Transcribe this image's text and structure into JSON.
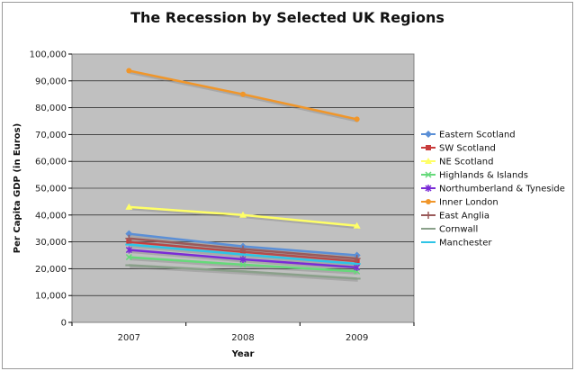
{
  "chart_data": {
    "type": "line",
    "title": "The Recession by Selected UK Regions",
    "xlabel": "Year",
    "ylabel": "Per Capita GDP (in Euros)",
    "x": [
      "2007",
      "2008",
      "2009"
    ],
    "ylim": [
      0,
      100000
    ],
    "yticks": [
      "0",
      "10,000",
      "20,000",
      "30,000",
      "40,000",
      "50,000",
      "60,000",
      "70,000",
      "80,000",
      "90,000",
      "100,000"
    ],
    "grid": true,
    "legend": "right",
    "series": [
      {
        "name": "Eastern Scotland",
        "color": "#5b8fd6",
        "marker": "diamond",
        "values": [
          33000,
          28300,
          25000
        ]
      },
      {
        "name": "SW Scotland",
        "color": "#c83c3c",
        "marker": "square",
        "values": [
          30000,
          26300,
          22800
        ]
      },
      {
        "name": "NE Scotland",
        "color": "#ffff66",
        "marker": "triangle",
        "values": [
          43000,
          40000,
          36000
        ]
      },
      {
        "name": "Highlands & Islands",
        "color": "#66d97a",
        "marker": "x",
        "values": [
          24300,
          21500,
          19000
        ]
      },
      {
        "name": "Northumberland & Tyneside",
        "color": "#7a2bd6",
        "marker": "asterisk",
        "values": [
          27000,
          23500,
          20500
        ]
      },
      {
        "name": "Inner London",
        "color": "#f0962a",
        "marker": "circle",
        "values": [
          93800,
          85000,
          75700
        ]
      },
      {
        "name": "East Anglia",
        "color": "#9a5a5a",
        "marker": "plus",
        "values": [
          31300,
          27300,
          23800
        ]
      },
      {
        "name": "Cornwall",
        "color": "#8aa08a",
        "marker": "dash",
        "values": [
          21300,
          19000,
          16300
        ]
      },
      {
        "name": "Manchester",
        "color": "#2ec4e6",
        "marker": "dash",
        "values": [
          29000,
          25300,
          21800
        ]
      }
    ]
  }
}
